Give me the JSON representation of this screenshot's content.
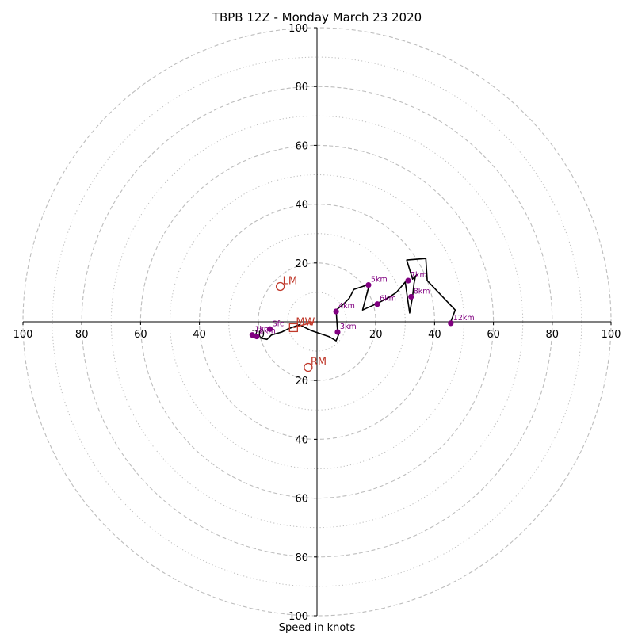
{
  "chart_data": {
    "type": "hodograph",
    "title": "TBPB 12Z - Monday March 23 2020",
    "xlabel": "Speed in knots",
    "ylabel": "",
    "xlim": [
      -100,
      100
    ],
    "ylim": [
      -100,
      100
    ],
    "axis_ticks": [
      0,
      20,
      40,
      60,
      80,
      100
    ],
    "rings_major": [
      20,
      40,
      60,
      80,
      100
    ],
    "rings_minor": [
      10,
      30,
      50,
      70,
      90
    ],
    "grid": true,
    "colors": {
      "trace": "#000000",
      "height_points": "#800080",
      "motion_markers": "#c0392b",
      "grid": "#bdbdbd"
    },
    "hodograph_trace": [
      [
        -19.5,
        -5.5
      ],
      [
        -17,
        -6
      ],
      [
        -15.5,
        -4.5
      ],
      [
        -12,
        -3.5
      ],
      [
        -10,
        -2.5
      ],
      [
        -6,
        -1
      ],
      [
        -2,
        -3
      ],
      [
        4,
        -5
      ],
      [
        6.5,
        -6.5
      ],
      [
        7.5,
        -4
      ],
      [
        7,
        -3.5
      ],
      [
        6.5,
        4
      ],
      [
        9,
        6
      ],
      [
        11,
        8
      ],
      [
        12.5,
        11
      ],
      [
        17,
        12.5
      ],
      [
        17.5,
        11.5
      ],
      [
        15.5,
        4
      ],
      [
        20,
        6
      ],
      [
        24,
        8
      ],
      [
        27,
        10
      ],
      [
        30,
        13.5
      ],
      [
        31.5,
        3
      ],
      [
        32.5,
        8.5
      ],
      [
        33,
        13
      ],
      [
        33.5,
        15.5
      ],
      [
        34,
        16
      ],
      [
        32.5,
        14.5
      ],
      [
        30.5,
        21
      ],
      [
        37,
        21.5
      ],
      [
        37.5,
        14
      ],
      [
        47,
        4
      ],
      [
        45.5,
        0
      ]
    ],
    "height_points": [
      {
        "label": "Sfc",
        "u": -16,
        "v": -2.5
      },
      {
        "label": "1km",
        "u": -22,
        "v": -4.5
      },
      {
        "label": "2km",
        "u": -20.5,
        "v": -5
      },
      {
        "label": "3km",
        "u": 7,
        "v": -3.5
      },
      {
        "label": "4km",
        "u": 6.5,
        "v": 3.5
      },
      {
        "label": "5km",
        "u": 17.5,
        "v": 12.5
      },
      {
        "label": "6km",
        "u": 20.5,
        "v": 6
      },
      {
        "label": "7km",
        "u": 31,
        "v": 14
      },
      {
        "label": "8km",
        "u": 32,
        "v": 8.5
      },
      {
        "label": "12km",
        "u": 45.5,
        "v": -0.5
      }
    ],
    "motion_markers": [
      {
        "label": "LM",
        "u": -12.5,
        "v": 12,
        "marker": "circle"
      },
      {
        "label": "RM",
        "u": -3,
        "v": -15.5,
        "marker": "circle"
      },
      {
        "label": "MW",
        "u": -8,
        "v": -2,
        "marker": "square"
      }
    ],
    "mean_wind_vector": {
      "from": [
        -8,
        -2
      ],
      "to": [
        -1,
        0
      ]
    }
  }
}
